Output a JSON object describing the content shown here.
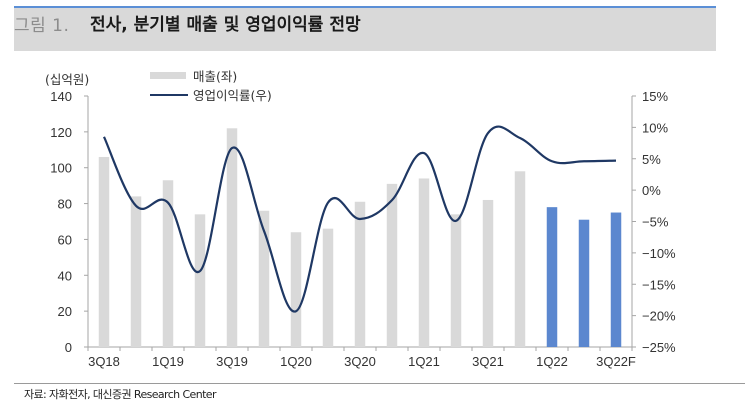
{
  "header": {
    "figure_number": "그림 1.",
    "title": "전사, 분기별 매출 및 영업이익률 전망",
    "accent_color": "#5b8fd6",
    "background_color": "#d9d9d9"
  },
  "source": "자료: 자화전자, 대신증권 Research Center",
  "chart_data": {
    "type": "bar+line",
    "title": "전사, 분기별 매출 및 영업이익률 전망",
    "left_axis_unit": "(십억원)",
    "categories": [
      "3Q18",
      "4Q18",
      "1Q19",
      "2Q19",
      "3Q19",
      "4Q19",
      "1Q20",
      "2Q20",
      "3Q20",
      "4Q20",
      "1Q21",
      "2Q21",
      "3Q21",
      "4Q21",
      "1Q22",
      "2Q22",
      "3Q22F"
    ],
    "x_tick_labels": [
      "3Q18",
      "1Q19",
      "3Q19",
      "1Q20",
      "3Q20",
      "1Q21",
      "3Q21",
      "1Q22",
      "3Q22F"
    ],
    "series": [
      {
        "name": "매출(좌)",
        "type": "bar",
        "axis": "left",
        "color_actual": "#d9d9d9",
        "color_forecast": "#5b87cf",
        "forecast_from_index": 14,
        "values": [
          106,
          84,
          93,
          74,
          122,
          76,
          64,
          66,
          81,
          91,
          94,
          74,
          82,
          98,
          78,
          71,
          75
        ]
      },
      {
        "name": "영업이익률(우)",
        "type": "line",
        "axis": "right",
        "color": "#1f3864",
        "smooth": true,
        "values": [
          8.5,
          -2.5,
          -2.0,
          -12.9,
          6.7,
          -6.5,
          -19.3,
          -2.0,
          -4.6,
          -1.6,
          5.9,
          -4.9,
          9.1,
          8.3,
          4.6,
          4.6,
          4.7
        ]
      }
    ],
    "left_axis": {
      "min": 0,
      "max": 140,
      "step": 20,
      "ticks": [
        "0",
        "20",
        "40",
        "60",
        "80",
        "100",
        "120",
        "140"
      ]
    },
    "right_axis": {
      "min": -25,
      "max": 15,
      "step": 5,
      "ticks": [
        "-25%",
        "-20%",
        "-15%",
        "-10%",
        "-5%",
        "0%",
        "5%",
        "10%",
        "15%"
      ]
    },
    "legend": {
      "position": "top-left",
      "items": [
        "매출(좌)",
        "영업이익률(우)"
      ]
    },
    "grid": false
  }
}
